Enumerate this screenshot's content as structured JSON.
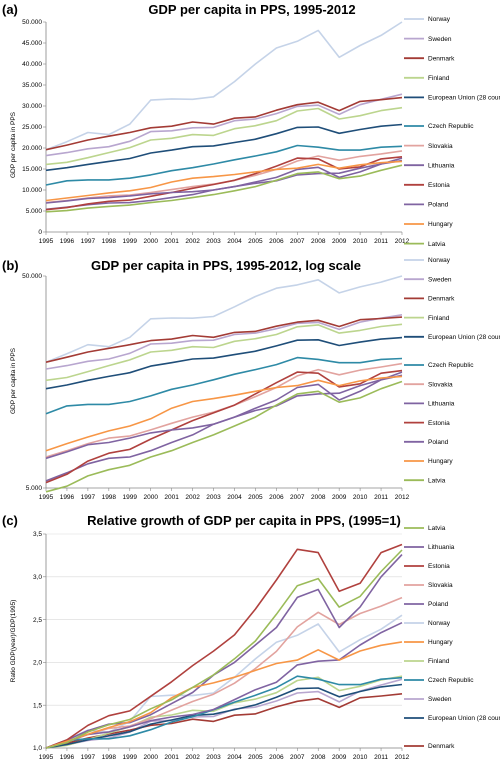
{
  "chart_data": [
    {
      "panel_label": "(a)",
      "type": "line",
      "title": "GDP per capita in  PPS, 1995-2012",
      "ylabel": "GDP per capita in PPS",
      "xlabel": "",
      "scale": "linear",
      "ylim": [
        0,
        50000
      ],
      "yticks": [
        0,
        5000,
        10000,
        15000,
        20000,
        25000,
        30000,
        35000,
        40000,
        45000,
        50000
      ],
      "ytick_labels": [
        "0",
        "5.000",
        "10.000",
        "15.000",
        "20.000",
        "25.000",
        "30.000",
        "35.000",
        "40.000",
        "45.000",
        "50.000"
      ],
      "x": [
        1995,
        1996,
        1997,
        1998,
        1999,
        2000,
        2001,
        2002,
        2003,
        2004,
        2005,
        2006,
        2007,
        2008,
        2009,
        2010,
        2011,
        2012
      ],
      "legend_position": "right",
      "series": [
        {
          "name": "Norway",
          "color": "#c5d3e8",
          "values": [
            19600,
            21500,
            23700,
            23200,
            25700,
            31400,
            31700,
            31600,
            32200,
            35800,
            40000,
            43800,
            45400,
            48000,
            41600,
            44400,
            46800,
            50000
          ]
        },
        {
          "name": "Sweden",
          "color": "#b8a6cf",
          "values": [
            18200,
            18900,
            19800,
            20300,
            21600,
            23900,
            24100,
            24800,
            24900,
            26500,
            26900,
            28200,
            29900,
            30200,
            28000,
            30300,
            31600,
            32800
          ]
        },
        {
          "name": "Denmark",
          "color": "#a33b35",
          "values": [
            19600,
            20700,
            21900,
            22800,
            23700,
            24800,
            25200,
            26200,
            25700,
            27100,
            27400,
            29000,
            30300,
            30900,
            28900,
            31100,
            31500,
            32000
          ]
        },
        {
          "name": "Finland",
          "color": "#bcd58e",
          "values": [
            16100,
            16600,
            17700,
            18900,
            20100,
            21900,
            22300,
            23200,
            23000,
            24600,
            25300,
            26500,
            28800,
            29400,
            26900,
            27700,
            28900,
            29600
          ]
        },
        {
          "name": "European Union (28 countries)",
          "color": "#1f4e79",
          "values": [
            14700,
            15300,
            16100,
            16800,
            17500,
            18800,
            19500,
            20300,
            20500,
            21300,
            22100,
            23400,
            24900,
            25000,
            23500,
            24400,
            25200,
            25600
          ]
        },
        {
          "name": "Czech Republic",
          "color": "#2e8aa6",
          "values": [
            11200,
            12200,
            12400,
            12400,
            12800,
            13600,
            14600,
            15300,
            16200,
            17200,
            18100,
            19100,
            20600,
            20200,
            19500,
            19500,
            20200,
            20400
          ]
        },
        {
          "name": "Slovakia",
          "color": "#e2a39f",
          "values": [
            7000,
            7500,
            8100,
            8600,
            8800,
            9400,
            10100,
            10800,
            11400,
            12300,
            13500,
            14900,
            16900,
            18100,
            17100,
            18000,
            18600,
            19300
          ]
        },
        {
          "name": "Lithuania",
          "color": "#7f63a1",
          "values": [
            5400,
            5900,
            6500,
            6900,
            7000,
            7500,
            8200,
            8900,
            10000,
            10800,
            11900,
            13000,
            14900,
            15400,
            13000,
            14300,
            16200,
            17600
          ]
        },
        {
          "name": "Estonia",
          "color": "#b0413e",
          "values": [
            5300,
            5800,
            6700,
            7300,
            7600,
            8500,
            9400,
            10400,
            11300,
            12300,
            13900,
            15700,
            17600,
            17400,
            15000,
            15500,
            17400,
            17900
          ]
        },
        {
          "name": "Poland",
          "color": "#8064a2",
          "values": [
            6900,
            7400,
            8000,
            8200,
            8600,
            9100,
            9400,
            9600,
            10000,
            10800,
            11600,
            12200,
            13600,
            13900,
            14000,
            15200,
            16200,
            17000
          ]
        },
        {
          "name": "Hungary",
          "color": "#f79646",
          "values": [
            7500,
            8100,
            8700,
            9300,
            9800,
            10600,
            11900,
            12800,
            13200,
            13700,
            14300,
            14900,
            15200,
            16100,
            15200,
            16000,
            16500,
            16800
          ]
        },
        {
          "name": "Latvia",
          "color": "#9bbb59",
          "values": [
            4800,
            5100,
            5700,
            6100,
            6400,
            7000,
            7500,
            8200,
            8900,
            9800,
            10800,
            12300,
            13900,
            14300,
            12700,
            13300,
            14700,
            15900
          ]
        }
      ]
    },
    {
      "panel_label": "(b)",
      "type": "line",
      "title": "GDP per capita in PPS, 1995-2012, log scale",
      "ylabel": "GDP per capita in PPS",
      "xlabel": "",
      "scale": "log",
      "ylim": [
        5000,
        50000
      ],
      "yticks": [
        5000,
        50000
      ],
      "ytick_labels": [
        "5.000",
        "50.000"
      ],
      "x": [
        1995,
        1996,
        1997,
        1998,
        1999,
        2000,
        2001,
        2002,
        2003,
        2004,
        2005,
        2006,
        2007,
        2008,
        2009,
        2010,
        2011,
        2012
      ],
      "legend_position": "right",
      "series": [
        {
          "name": "Norway"
        },
        {
          "name": "Sweden"
        },
        {
          "name": "Denmark"
        },
        {
          "name": "Finland"
        },
        {
          "name": "European Union (28 countries)"
        },
        {
          "name": "Czech Republic"
        },
        {
          "name": "Slovakia"
        },
        {
          "name": "Lithuania"
        },
        {
          "name": "Estonia"
        },
        {
          "name": "Poland"
        },
        {
          "name": "Hungary"
        },
        {
          "name": "Latvia"
        }
      ]
    },
    {
      "panel_label": "(c)",
      "type": "line",
      "title": "Relative growth of GDP per capita in PPS, (1995=1)",
      "ylabel": "Ratio GDP(year)/GDP(1995)",
      "xlabel": "",
      "scale": "linear",
      "ylim": [
        1.0,
        3.5
      ],
      "yticks": [
        1.0,
        1.5,
        2.0,
        2.5,
        3.0,
        3.5
      ],
      "ytick_labels": [
        "1,0",
        "1,5",
        "2,0",
        "2,5",
        "3,0",
        "3,5"
      ],
      "x": [
        1995,
        1996,
        1997,
        1998,
        1999,
        2000,
        2001,
        2002,
        2003,
        2004,
        2005,
        2006,
        2007,
        2008,
        2009,
        2010,
        2011,
        2012
      ],
      "legend_position": "right",
      "legend_order": [
        "Latvia",
        "Lithuania",
        "Estonia",
        "Slovakia",
        "Poland",
        "Norway",
        "Hungary",
        "Finland",
        "Czech Republic",
        "Sweden",
        "European Union (28 countries)",
        "Denmark"
      ]
    }
  ],
  "legend_colors": {
    "Norway": "#c5d3e8",
    "Sweden": "#b8a6cf",
    "Denmark": "#a33b35",
    "Finland": "#bcd58e",
    "European Union (28 countries)": "#1f4e79",
    "Czech Republic": "#2e8aa6",
    "Slovakia": "#e2a39f",
    "Lithuania": "#7f63a1",
    "Estonia": "#b0413e",
    "Poland": "#8064a2",
    "Hungary": "#f79646",
    "Latvia": "#9bbb59"
  }
}
